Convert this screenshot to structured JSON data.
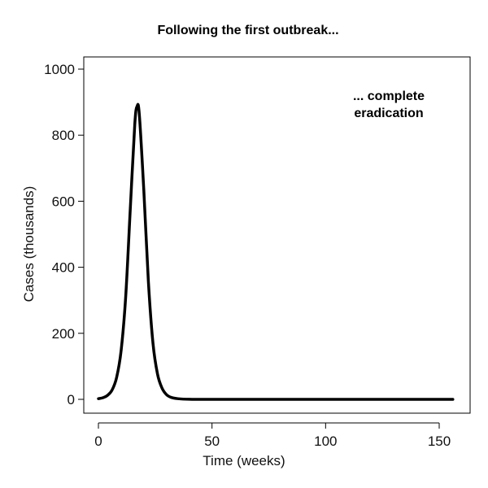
{
  "chart_data": {
    "type": "line",
    "title": "Following the first outbreak...",
    "xlabel": "Time (weeks)",
    "ylabel": "Cases (thousands)",
    "xlim": [
      0,
      156
    ],
    "ylim": [
      0,
      1000
    ],
    "xticks": [
      0,
      50,
      100,
      150
    ],
    "yticks": [
      0,
      200,
      400,
      600,
      800,
      1000
    ],
    "grid": false,
    "annotation": [
      "... complete",
      "eradication"
    ],
    "line_color": "#000000",
    "series": [
      {
        "x": [
          0,
          2,
          4,
          6,
          8,
          10,
          12,
          14,
          16,
          17,
          18,
          20,
          22,
          24,
          26,
          28,
          30,
          32,
          35,
          40,
          50,
          75,
          100,
          125,
          156
        ],
        "y": [
          2,
          5,
          12,
          28,
          66,
          148,
          310,
          573,
          832,
          887,
          863,
          631,
          356,
          171,
          77,
          34,
          14,
          6,
          2,
          0.2,
          0,
          0,
          0,
          0,
          0
        ]
      }
    ]
  }
}
